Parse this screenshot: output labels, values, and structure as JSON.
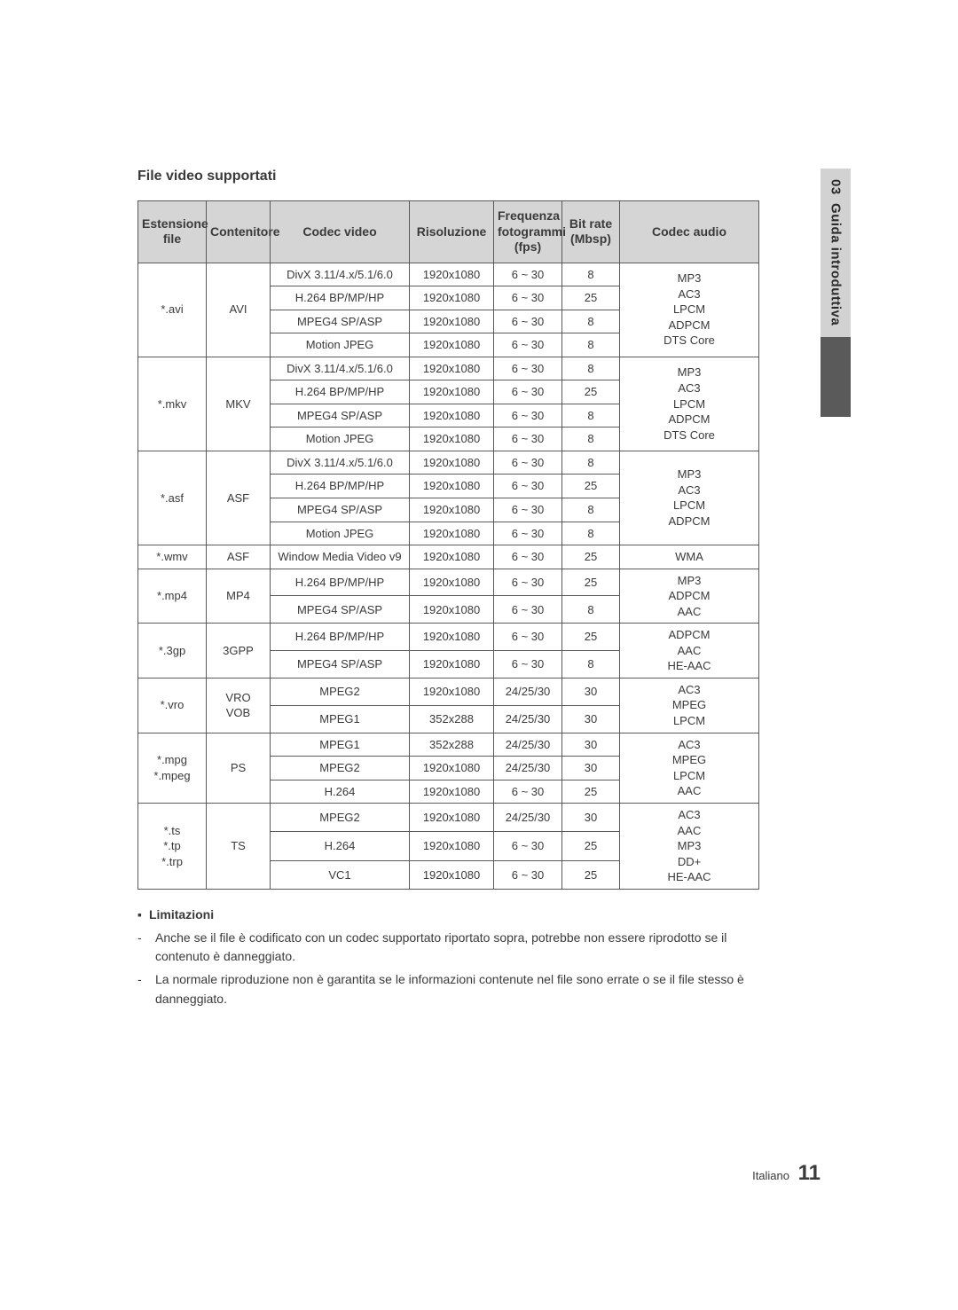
{
  "sideTab": {
    "chapter": "03",
    "title": "Guida introduttiva"
  },
  "sectionTitle": "File video supportati",
  "table": {
    "headers": {
      "ext": "Estensione file",
      "container": "Contenitore",
      "vcodec": "Codec video",
      "res": "Risoluzione",
      "fps": "Frequenza fotogrammi (fps)",
      "bitrate": "Bit rate (Mbsp)",
      "acodec": "Codec audio"
    },
    "colwidths": {
      "ext": 77,
      "container": 72,
      "vcodec": 157,
      "res": 95,
      "fps": 77,
      "bitrate": 65,
      "acodec": 157
    },
    "groups": [
      {
        "ext": "*.avi",
        "container": "AVI",
        "acodec": "MP3\nAC3\nLPCM\nADPCM\nDTS Core",
        "rows": [
          {
            "vcodec": "DivX 3.11/4.x/5.1/6.0",
            "res": "1920x1080",
            "fps": "6 ~ 30",
            "bitrate": "8"
          },
          {
            "vcodec": "H.264 BP/MP/HP",
            "res": "1920x1080",
            "fps": "6 ~ 30",
            "bitrate": "25"
          },
          {
            "vcodec": "MPEG4 SP/ASP",
            "res": "1920x1080",
            "fps": "6 ~ 30",
            "bitrate": "8"
          },
          {
            "vcodec": "Motion JPEG",
            "res": "1920x1080",
            "fps": "6 ~ 30",
            "bitrate": "8"
          }
        ]
      },
      {
        "ext": "*.mkv",
        "container": "MKV",
        "acodec": "MP3\nAC3\nLPCM\nADPCM\nDTS Core",
        "rows": [
          {
            "vcodec": "DivX 3.11/4.x/5.1/6.0",
            "res": "1920x1080",
            "fps": "6 ~ 30",
            "bitrate": "8"
          },
          {
            "vcodec": "H.264 BP/MP/HP",
            "res": "1920x1080",
            "fps": "6 ~ 30",
            "bitrate": "25"
          },
          {
            "vcodec": "MPEG4 SP/ASP",
            "res": "1920x1080",
            "fps": "6 ~ 30",
            "bitrate": "8"
          },
          {
            "vcodec": "Motion JPEG",
            "res": "1920x1080",
            "fps": "6 ~ 30",
            "bitrate": "8"
          }
        ]
      },
      {
        "ext": "*.asf",
        "container": "ASF",
        "acodec": "MP3\nAC3\nLPCM\nADPCM",
        "rows": [
          {
            "vcodec": "DivX 3.11/4.x/5.1/6.0",
            "res": "1920x1080",
            "fps": "6 ~ 30",
            "bitrate": "8"
          },
          {
            "vcodec": "H.264 BP/MP/HP",
            "res": "1920x1080",
            "fps": "6 ~ 30",
            "bitrate": "25"
          },
          {
            "vcodec": "MPEG4 SP/ASP",
            "res": "1920x1080",
            "fps": "6 ~ 30",
            "bitrate": "8"
          },
          {
            "vcodec": "Motion JPEG",
            "res": "1920x1080",
            "fps": "6 ~ 30",
            "bitrate": "8"
          }
        ]
      },
      {
        "ext": "*.wmv",
        "container": "ASF",
        "acodec": "WMA",
        "rows": [
          {
            "vcodec": "Window Media Video v9",
            "res": "1920x1080",
            "fps": "6 ~ 30",
            "bitrate": "25"
          }
        ]
      },
      {
        "ext": "*.mp4",
        "container": "MP4",
        "acodec": "MP3\nADPCM\nAAC",
        "rows": [
          {
            "vcodec": "H.264 BP/MP/HP",
            "res": "1920x1080",
            "fps": "6 ~ 30",
            "bitrate": "25"
          },
          {
            "vcodec": "MPEG4 SP/ASP",
            "res": "1920x1080",
            "fps": "6 ~ 30",
            "bitrate": "8"
          }
        ]
      },
      {
        "ext": "*.3gp",
        "container": "3GPP",
        "acodec": "ADPCM\nAAC\nHE-AAC",
        "rows": [
          {
            "vcodec": "H.264 BP/MP/HP",
            "res": "1920x1080",
            "fps": "6 ~ 30",
            "bitrate": "25"
          },
          {
            "vcodec": "MPEG4 SP/ASP",
            "res": "1920x1080",
            "fps": "6 ~ 30",
            "bitrate": "8"
          }
        ]
      },
      {
        "ext": "*.vro",
        "container": "VRO\nVOB",
        "acodec": "AC3\nMPEG\nLPCM",
        "rows": [
          {
            "vcodec": "MPEG2",
            "res": "1920x1080",
            "fps": "24/25/30",
            "bitrate": "30"
          },
          {
            "vcodec": "MPEG1",
            "res": "352x288",
            "fps": "24/25/30",
            "bitrate": "30"
          }
        ]
      },
      {
        "ext": "*.mpg\n*.mpeg",
        "container": "PS",
        "acodec": "AC3\nMPEG\nLPCM\nAAC",
        "rows": [
          {
            "vcodec": "MPEG1",
            "res": "352x288",
            "fps": "24/25/30",
            "bitrate": "30"
          },
          {
            "vcodec": "MPEG2",
            "res": "1920x1080",
            "fps": "24/25/30",
            "bitrate": "30"
          },
          {
            "vcodec": "H.264",
            "res": "1920x1080",
            "fps": "6 ~ 30",
            "bitrate": "25"
          }
        ]
      },
      {
        "ext": "*.ts\n*.tp\n*.trp",
        "container": "TS",
        "acodec": "AC3\nAAC\nMP3\nDD+\nHE-AAC",
        "rows": [
          {
            "vcodec": "MPEG2",
            "res": "1920x1080",
            "fps": "24/25/30",
            "bitrate": "30"
          },
          {
            "vcodec": "H.264",
            "res": "1920x1080",
            "fps": "6 ~ 30",
            "bitrate": "25"
          },
          {
            "vcodec": "VC1",
            "res": "1920x1080",
            "fps": "6 ~ 30",
            "bitrate": "25"
          }
        ]
      }
    ]
  },
  "notes": {
    "title": "Limitazioni",
    "items": [
      "Anche se il file è codificato con un codec supportato riportato sopra, potrebbe non essere riprodotto se il contenuto è danneggiato.",
      "La normale riproduzione non è garantita se le informazioni contenute nel file sono errate o se il file stesso è danneggiato."
    ]
  },
  "footer": {
    "lang": "Italiano",
    "page": "11"
  },
  "colors": {
    "headerBg": "#d5d5d5",
    "border": "#5a5a5a",
    "text": "#3a3a3a",
    "tabGray": "#d2d2d2",
    "tabDark": "#5a5a5a"
  }
}
